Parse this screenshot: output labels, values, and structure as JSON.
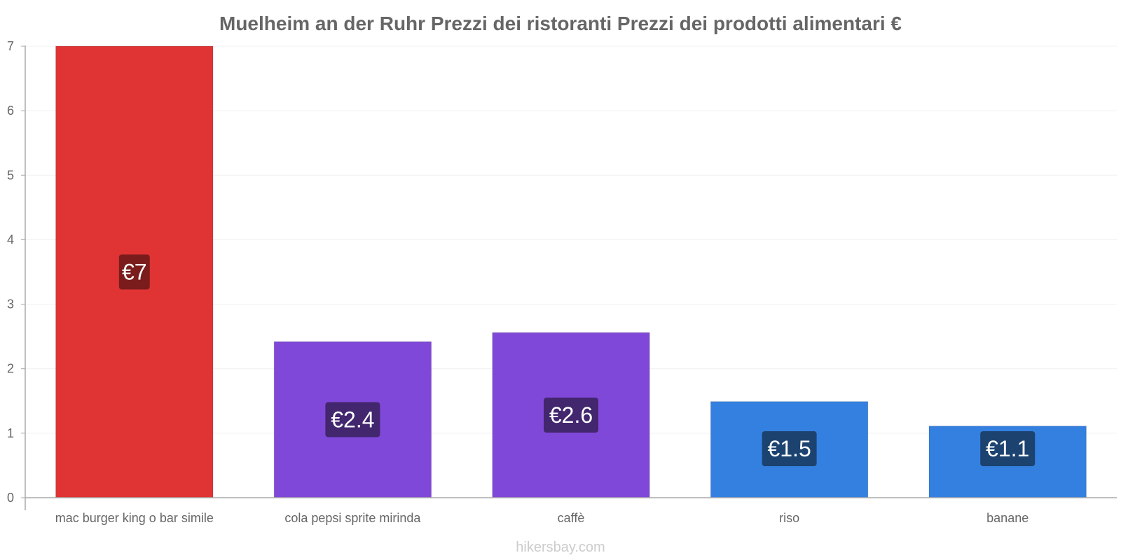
{
  "chart_data": {
    "type": "bar",
    "title": "Muelheim an der Ruhr Prezzi dei ristoranti Prezzi dei prodotti alimentari €",
    "categories": [
      "mac burger king o bar simile",
      "cola pepsi sprite mirinda",
      "caffè",
      "riso",
      "banane"
    ],
    "values": [
      7,
      2.42,
      2.56,
      1.49,
      1.11
    ],
    "data_labels": [
      "€7",
      "€2.4",
      "€2.6",
      "€1.5",
      "€1.1"
    ],
    "bar_colors": [
      "#e03434",
      "#8048d8",
      "#8048d8",
      "#3480e0",
      "#3480e0"
    ],
    "label_bg_colors": [
      "#7a1c1c",
      "#42266e",
      "#42266e",
      "#1c4270",
      "#1c4270"
    ],
    "ylim": [
      0,
      7
    ],
    "yticks": [
      0,
      1,
      2,
      3,
      4,
      5,
      6,
      7
    ],
    "xlabel": "",
    "ylabel": "",
    "grid": true
  },
  "watermark": "hikersbay.com"
}
